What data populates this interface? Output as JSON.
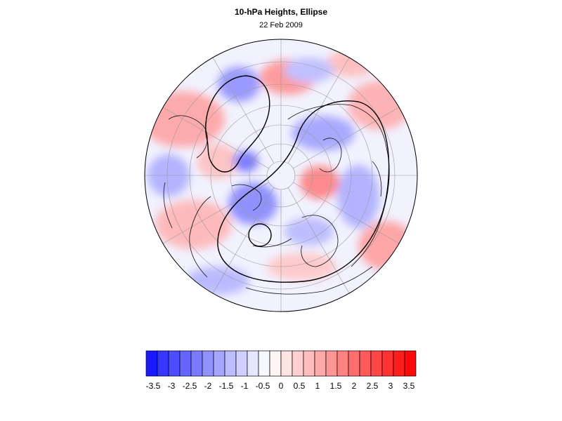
{
  "title": "10-hPa Heights, Ellipse",
  "date": "22 Feb 2009",
  "map": {
    "projection": "polar-stereographic",
    "hemisphere": "north",
    "overlay": "ellipse-contour",
    "colormap": "blue-white-red"
  },
  "colorbar": {
    "labels": [
      "-3.5",
      "-3",
      "-2.5",
      "-2",
      "-1.5",
      "-1",
      "-0.5",
      "0",
      "0.5",
      "1",
      "1.5",
      "2",
      "2.5",
      "3",
      "3.5"
    ],
    "colors": [
      "#1a1aff",
      "#3636ff",
      "#4d4dff",
      "#6464ff",
      "#7a7aff",
      "#9292ff",
      "#a6a6ff",
      "#bcbcff",
      "#d0d0ff",
      "#e6e6ff",
      "#f7f7ff",
      "#fff4f4",
      "#ffe4e4",
      "#ffd0d0",
      "#ffbebe",
      "#ffaaaa",
      "#ff9696",
      "#ff8282",
      "#ff6e6e",
      "#ff5a5a",
      "#ff4646",
      "#ff3232",
      "#ff1e1e",
      "#ff0a0a"
    ]
  }
}
